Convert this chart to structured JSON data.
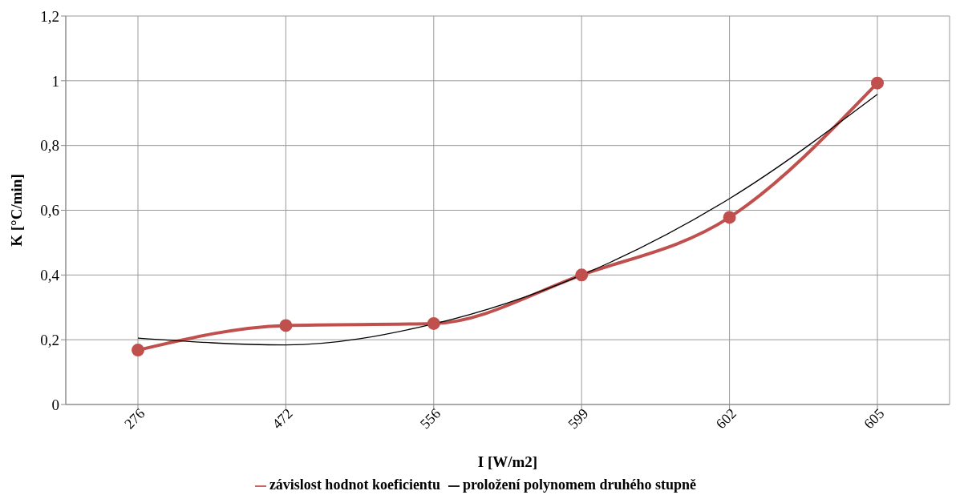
{
  "chart_data": {
    "type": "line",
    "xlabel": "I [W/m2]",
    "ylabel": "K [°C/min]",
    "categories": [
      "276",
      "472",
      "556",
      "599",
      "602",
      "605"
    ],
    "series": [
      {
        "name": "závislost hodnot koeficientu",
        "color": "#c0504d",
        "values": [
          0.168,
          0.244,
          0.25,
          0.4,
          0.578,
          0.993
        ],
        "marker": "circle"
      },
      {
        "name": "proložení polynomem druhého stupně",
        "color": "#000000",
        "values": [
          0.205,
          0.184,
          0.249,
          0.4,
          0.636,
          0.958
        ],
        "marker": "none"
      }
    ],
    "ylim": [
      0,
      1.2
    ],
    "yticks": [
      0,
      {
        "value": 0.2,
        "label": "0,2"
      },
      {
        "value": 0.4,
        "label": "0,4"
      },
      {
        "value": 0.6,
        "label": "0,6"
      },
      {
        "value": 0.8,
        "label": "0,8"
      },
      1,
      {
        "value": 1.2,
        "label": "1,2"
      }
    ],
    "grid": true,
    "legend": "bottom",
    "line_style": "solid"
  }
}
